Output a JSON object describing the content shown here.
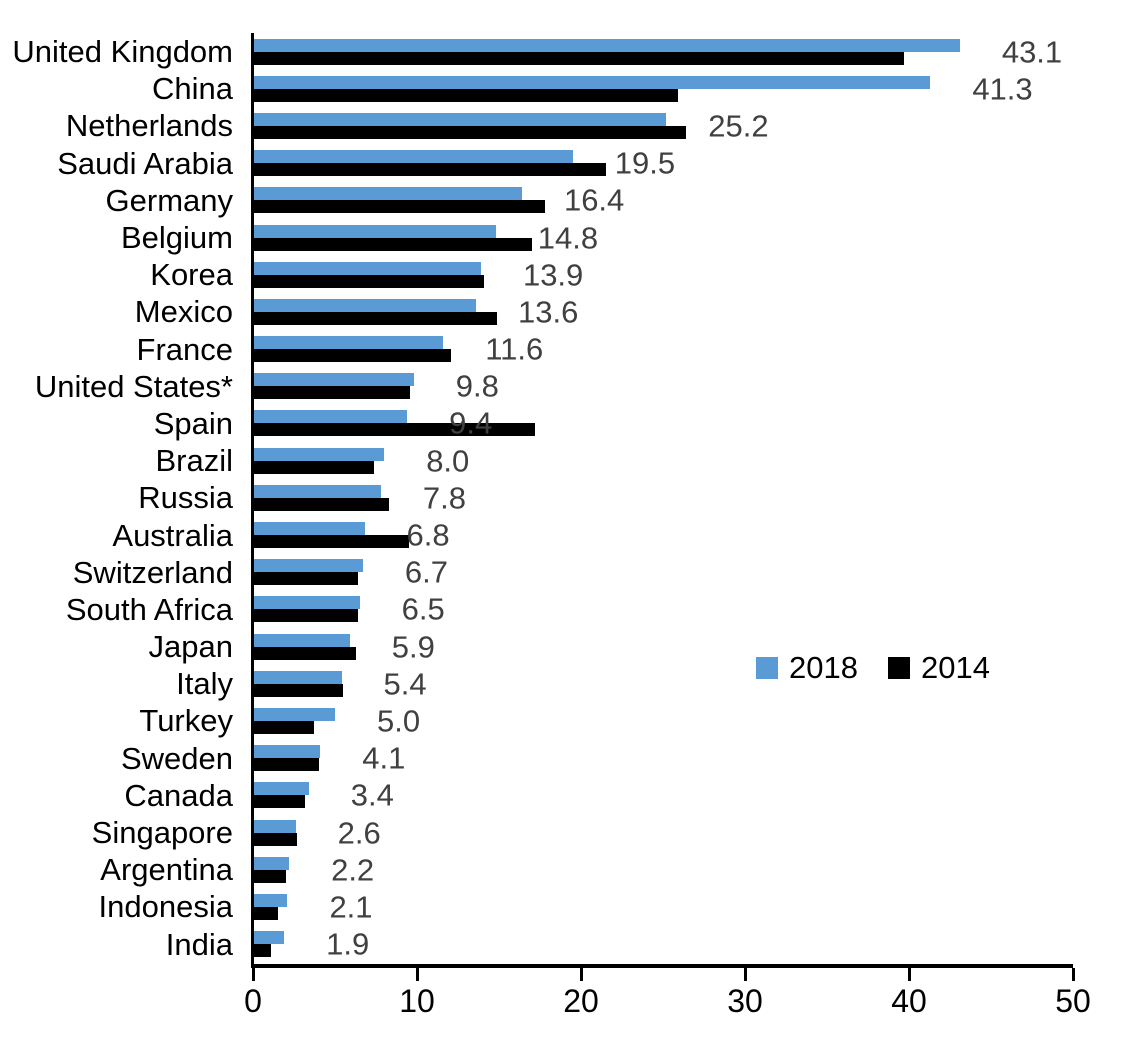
{
  "chart_data": {
    "type": "bar",
    "orientation": "horizontal",
    "title": "",
    "xlabel": "",
    "ylabel": "",
    "xlim": [
      0,
      50
    ],
    "x_ticks": [
      "0",
      "10",
      "20",
      "30",
      "40",
      "50"
    ],
    "grid": false,
    "legend_position": "middle-right",
    "categories": [
      "United Kingdom",
      "China",
      "Netherlands",
      "Saudi Arabia",
      "Germany",
      "Belgium",
      "Korea",
      "Mexico",
      "France",
      "United States*",
      "Spain",
      "Brazil",
      "Russia",
      "Australia",
      "Switzerland",
      "South Africa",
      "Japan",
      "Italy",
      "Turkey",
      "Sweden",
      "Canada",
      "Singapore",
      "Argentina",
      "Indonesia",
      "India"
    ],
    "series": [
      {
        "name": "2018",
        "color": "#5B9BD5",
        "values": [
          43.1,
          41.3,
          25.2,
          19.5,
          16.4,
          14.8,
          13.9,
          13.6,
          11.6,
          9.8,
          9.4,
          8.0,
          7.8,
          6.8,
          6.7,
          6.5,
          5.9,
          5.4,
          5.0,
          4.1,
          3.4,
          2.6,
          2.2,
          2.1,
          1.9
        ]
      },
      {
        "name": "2014",
        "color": "#000000",
        "values": [
          39.7,
          25.9,
          26.4,
          21.5,
          17.8,
          17.0,
          14.1,
          14.9,
          12.1,
          9.6,
          17.2,
          7.4,
          8.3,
          9.5,
          6.4,
          6.4,
          6.3,
          5.5,
          3.7,
          4.0,
          3.2,
          2.7,
          2.0,
          1.5,
          1.1
        ]
      }
    ],
    "data_labels": [
      "43.1",
      "41.3",
      "25.2",
      "19.5",
      "16.4",
      "14.8",
      "13.9",
      "13.6",
      "11.6",
      "9.8",
      "9.4",
      "8.0",
      "7.8",
      "6.8",
      "6.7",
      "6.5",
      "5.9",
      "5.4",
      "5.0",
      "4.1",
      "3.4",
      "2.6",
      "2.2",
      "2.1",
      "1.9"
    ],
    "data_label_color": "#404040",
    "legend": [
      {
        "label": "2018",
        "color": "#5B9BD5"
      },
      {
        "label": "2014",
        "color": "#000000"
      }
    ]
  }
}
